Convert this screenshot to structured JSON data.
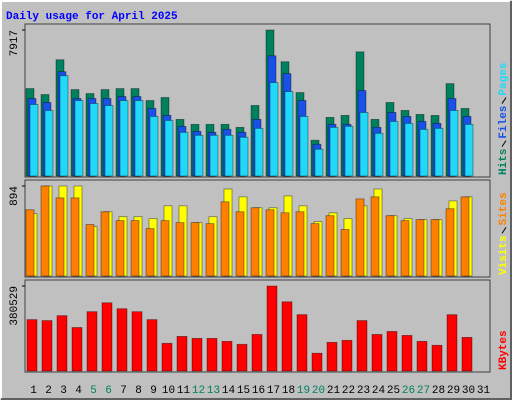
{
  "chart_data": [
    {
      "type": "bar",
      "title": "Daily usage for April 2025",
      "ylim": [
        0,
        7917
      ],
      "yticks": [
        7917
      ],
      "series": [
        {
          "name": "Hits",
          "color": "#00805c",
          "values": [
            4740,
            4417,
            6302,
            4686,
            4470,
            4686,
            4740,
            4740,
            4093,
            4255,
            3070,
            2801,
            2801,
            2801,
            2639,
            3824,
            7917,
            6194,
            4524,
            1939,
            3178,
            3285,
            6733,
            3070,
            3986,
            3555,
            3339,
            3285,
            5009,
            3662,
            0
          ]
        },
        {
          "name": "Files",
          "color": "#1850e8",
          "values": [
            4201,
            3986,
            5655,
            4201,
            4201,
            4201,
            4309,
            4309,
            3662,
            3285,
            2693,
            2424,
            2370,
            2531,
            2370,
            3070,
            6517,
            5548,
            4093,
            1724,
            2801,
            2801,
            4632,
            2639,
            3447,
            3232,
            2962,
            2855,
            4201,
            3232,
            0
          ]
        },
        {
          "name": "Pages",
          "color": "#20d8f8",
          "values": [
            3878,
            3555,
            5440,
            4093,
            3932,
            3824,
            4093,
            4093,
            3232,
            3016,
            2370,
            2208,
            2208,
            2208,
            2100,
            2585,
            5063,
            4578,
            3232,
            1454,
            2639,
            2693,
            3447,
            2316,
            2962,
            2855,
            2531,
            2585,
            3555,
            2801,
            0
          ]
        }
      ]
    },
    {
      "type": "bar",
      "ylim": [
        0,
        894
      ],
      "yticks": [
        894
      ],
      "series": [
        {
          "name": "Visits",
          "color": "#ffff00",
          "values": [
            619,
            894,
            894,
            894,
            491,
            638,
            589,
            589,
            570,
            697,
            697,
            530,
            589,
            864,
            786,
            678,
            678,
            795,
            697,
            540,
            628,
            570,
            697,
            864,
            599,
            570,
            560,
            560,
            746,
            786,
            0
          ]
        },
        {
          "name": "Sites",
          "color": "#ff8000",
          "values": [
            658,
            894,
            776,
            776,
            511,
            638,
            550,
            550,
            471,
            550,
            530,
            530,
            520,
            737,
            638,
            678,
            658,
            628,
            638,
            520,
            599,
            462,
            766,
            786,
            599,
            550,
            560,
            560,
            668,
            786,
            0
          ]
        }
      ]
    },
    {
      "type": "bar",
      "ylim": [
        0,
        380529
      ],
      "yticks": [
        380529
      ],
      "categories": [
        "1",
        "2",
        "3",
        "4",
        "5",
        "6",
        "7",
        "8",
        "9",
        "10",
        "11",
        "12",
        "13",
        "14",
        "15",
        "16",
        "17",
        "18",
        "19",
        "20",
        "21",
        "22",
        "23",
        "24",
        "25",
        "26",
        "27",
        "28",
        "29",
        "30",
        "31"
      ],
      "category_colors": [
        "#000000",
        "#000000",
        "#000000",
        "#000000",
        "#00805c",
        "#00805c",
        "#000000",
        "#000000",
        "#000000",
        "#000000",
        "#000000",
        "#00805c",
        "#00805c",
        "#000000",
        "#000000",
        "#000000",
        "#000000",
        "#000000",
        "#00805c",
        "#00805c",
        "#000000",
        "#000000",
        "#000000",
        "#000000",
        "#000000",
        "#00805c",
        "#00805c",
        "#000000",
        "#000000",
        "#000000",
        "#000000"
      ],
      "series": [
        {
          "name": "KBytes",
          "color": "#ff0000",
          "values": [
            230100,
            225675,
            247800,
            194700,
            265500,
            305325,
            278775,
            265500,
            230100,
            123900,
            154875,
            146025,
            146025,
            132750,
            119475,
            163725,
            380529,
            309750,
            252225,
            79650,
            128325,
            137175,
            225675,
            163725,
            177000,
            159300,
            132750,
            115050,
            252225,
            150450,
            0
          ]
        }
      ]
    }
  ]
}
